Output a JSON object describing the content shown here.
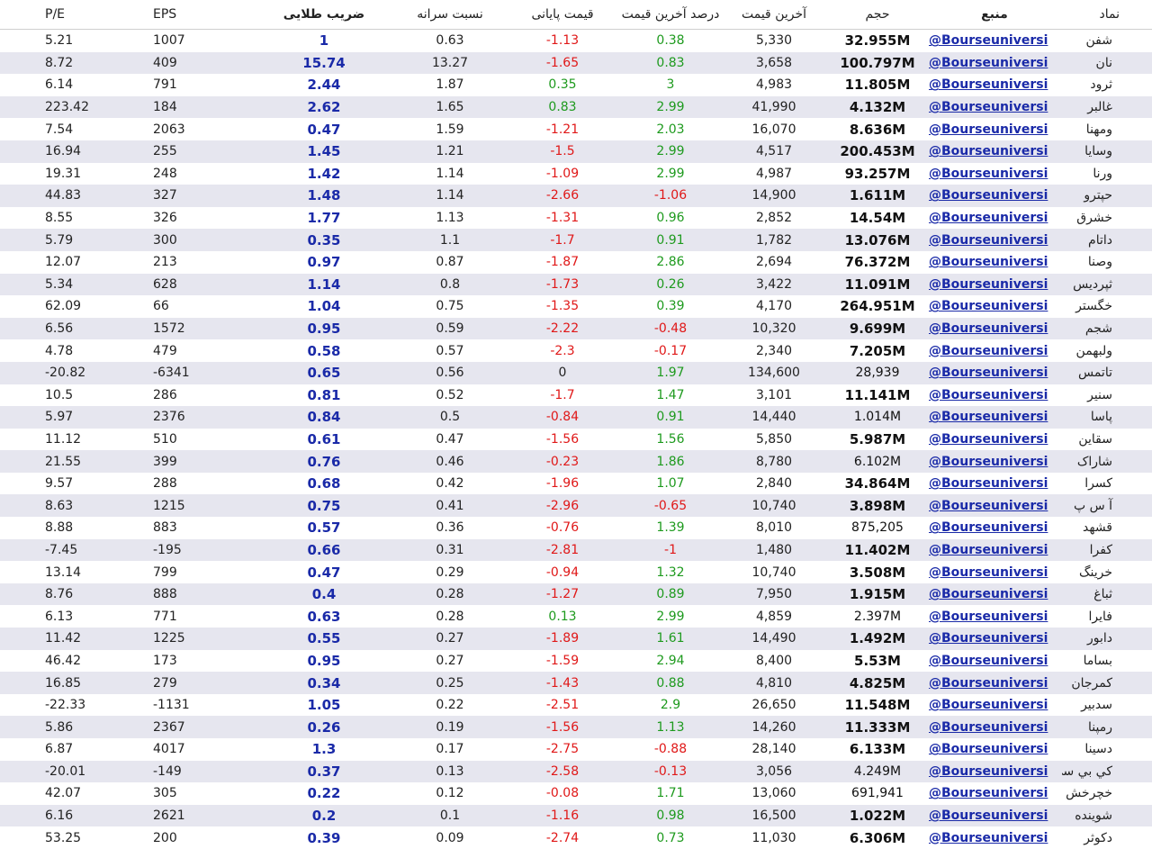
{
  "headers": {
    "pe": "P/E",
    "eps": "EPS",
    "golden": "ضریب طلایی",
    "per_capita": "نسبت سرانه",
    "close_price": "قیمت پایانی",
    "last_pct": "درصد آخرین قیمت",
    "last_price": "آخرین قیمت",
    "volume": "حجم",
    "source": "منبع",
    "symbol": "نماد"
  },
  "rows": [
    {
      "pe": "5.21",
      "eps": "1007",
      "golden": "1",
      "per": "0.63",
      "close": "-1.13",
      "lastpct": "0.38",
      "last": "5,330",
      "vol": "32.955M",
      "volBold": true,
      "src": "@Bourseuniversi",
      "sym": "شفن"
    },
    {
      "pe": "8.72",
      "eps": "409",
      "golden": "15.74",
      "per": "13.27",
      "close": "-1.65",
      "lastpct": "0.83",
      "last": "3,658",
      "vol": "100.797M",
      "volBold": true,
      "src": "@Bourseuniversi",
      "sym": "نان"
    },
    {
      "pe": "6.14",
      "eps": "791",
      "golden": "2.44",
      "per": "1.87",
      "close": "0.35",
      "lastpct": "3",
      "last": "4,983",
      "vol": "11.805M",
      "volBold": true,
      "src": "@Bourseuniversi",
      "sym": "ثرود"
    },
    {
      "pe": "223.42",
      "eps": "184",
      "golden": "2.62",
      "per": "1.65",
      "close": "0.83",
      "lastpct": "2.99",
      "last": "41,990",
      "vol": "4.132M",
      "volBold": true,
      "src": "@Bourseuniversi",
      "sym": "غالبر"
    },
    {
      "pe": "7.54",
      "eps": "2063",
      "golden": "0.47",
      "per": "1.59",
      "close": "-1.21",
      "lastpct": "2.03",
      "last": "16,070",
      "vol": "8.636M",
      "volBold": true,
      "src": "@Bourseuniversi",
      "sym": "ومهنا"
    },
    {
      "pe": "16.94",
      "eps": "255",
      "golden": "1.45",
      "per": "1.21",
      "close": "-1.5",
      "lastpct": "2.99",
      "last": "4,517",
      "vol": "200.453M",
      "volBold": true,
      "src": "@Bourseuniversi",
      "sym": "وسایا"
    },
    {
      "pe": "19.31",
      "eps": "248",
      "golden": "1.42",
      "per": "1.14",
      "close": "-1.09",
      "lastpct": "2.99",
      "last": "4,987",
      "vol": "93.257M",
      "volBold": true,
      "src": "@Bourseuniversi",
      "sym": "ورنا"
    },
    {
      "pe": "44.83",
      "eps": "327",
      "golden": "1.48",
      "per": "1.14",
      "close": "-2.66",
      "lastpct": "-1.06",
      "last": "14,900",
      "vol": "1.611M",
      "volBold": true,
      "src": "@Bourseuniversi",
      "sym": "حپترو"
    },
    {
      "pe": "8.55",
      "eps": "326",
      "golden": "1.77",
      "per": "1.13",
      "close": "-1.31",
      "lastpct": "0.96",
      "last": "2,852",
      "vol": "14.54M",
      "volBold": true,
      "src": "@Bourseuniversi",
      "sym": "خشرق"
    },
    {
      "pe": "5.79",
      "eps": "300",
      "golden": "0.35",
      "per": "1.1",
      "close": "-1.7",
      "lastpct": "0.91",
      "last": "1,782",
      "vol": "13.076M",
      "volBold": true,
      "src": "@Bourseuniversi",
      "sym": "داتام"
    },
    {
      "pe": "12.07",
      "eps": "213",
      "golden": "0.97",
      "per": "0.87",
      "close": "-1.87",
      "lastpct": "2.86",
      "last": "2,694",
      "vol": "76.372M",
      "volBold": true,
      "src": "@Bourseuniversi",
      "sym": "وصنا"
    },
    {
      "pe": "5.34",
      "eps": "628",
      "golden": "1.14",
      "per": "0.8",
      "close": "-1.73",
      "lastpct": "0.26",
      "last": "3,422",
      "vol": "11.091M",
      "volBold": true,
      "src": "@Bourseuniversi",
      "sym": "ثپردیس"
    },
    {
      "pe": "62.09",
      "eps": "66",
      "golden": "1.04",
      "per": "0.75",
      "close": "-1.35",
      "lastpct": "0.39",
      "last": "4,170",
      "vol": "264.951M",
      "volBold": true,
      "src": "@Bourseuniversi",
      "sym": "خگستر"
    },
    {
      "pe": "6.56",
      "eps": "1572",
      "golden": "0.95",
      "per": "0.59",
      "close": "-2.22",
      "lastpct": "-0.48",
      "last": "10,320",
      "vol": "9.699M",
      "volBold": true,
      "src": "@Bourseuniversi",
      "sym": "شجم"
    },
    {
      "pe": "4.78",
      "eps": "479",
      "golden": "0.58",
      "per": "0.57",
      "close": "-2.3",
      "lastpct": "-0.17",
      "last": "2,340",
      "vol": "7.205M",
      "volBold": true,
      "src": "@Bourseuniversi",
      "sym": "ولبهمن"
    },
    {
      "pe": "-20.82",
      "eps": "-6341",
      "golden": "0.65",
      "per": "0.56",
      "close": "0",
      "lastpct": "1.97",
      "last": "134,600",
      "vol": "28,939",
      "volBold": false,
      "src": "@Bourseuniversi",
      "sym": "تاتمس"
    },
    {
      "pe": "10.5",
      "eps": "286",
      "golden": "0.81",
      "per": "0.52",
      "close": "-1.7",
      "lastpct": "1.47",
      "last": "3,101",
      "vol": "11.141M",
      "volBold": true,
      "src": "@Bourseuniversi",
      "sym": "سنیر"
    },
    {
      "pe": "5.97",
      "eps": "2376",
      "golden": "0.84",
      "per": "0.5",
      "close": "-0.84",
      "lastpct": "0.91",
      "last": "14,440",
      "vol": "1.014M",
      "volBold": false,
      "src": "@Bourseuniversi",
      "sym": "پاسا"
    },
    {
      "pe": "11.12",
      "eps": "510",
      "golden": "0.61",
      "per": "0.47",
      "close": "-1.56",
      "lastpct": "1.56",
      "last": "5,850",
      "vol": "5.987M",
      "volBold": true,
      "src": "@Bourseuniversi",
      "sym": "سقاین"
    },
    {
      "pe": "21.55",
      "eps": "399",
      "golden": "0.76",
      "per": "0.46",
      "close": "-0.23",
      "lastpct": "1.86",
      "last": "8,780",
      "vol": "6.102M",
      "volBold": false,
      "src": "@Bourseuniversi",
      "sym": "شاراک"
    },
    {
      "pe": "9.57",
      "eps": "288",
      "golden": "0.68",
      "per": "0.42",
      "close": "-1.96",
      "lastpct": "1.07",
      "last": "2,840",
      "vol": "34.864M",
      "volBold": true,
      "src": "@Bourseuniversi",
      "sym": "کسرا"
    },
    {
      "pe": "8.63",
      "eps": "1215",
      "golden": "0.75",
      "per": "0.41",
      "close": "-2.96",
      "lastpct": "-0.65",
      "last": "10,740",
      "vol": "3.898M",
      "volBold": true,
      "src": "@Bourseuniversi",
      "sym": "آ س پ"
    },
    {
      "pe": "8.88",
      "eps": "883",
      "golden": "0.57",
      "per": "0.36",
      "close": "-0.76",
      "lastpct": "1.39",
      "last": "8,010",
      "vol": "875,205",
      "volBold": false,
      "src": "@Bourseuniversi",
      "sym": "قشهد"
    },
    {
      "pe": "-7.45",
      "eps": "-195",
      "golden": "0.66",
      "per": "0.31",
      "close": "-2.81",
      "lastpct": "-1",
      "last": "1,480",
      "vol": "11.402M",
      "volBold": true,
      "src": "@Bourseuniversi",
      "sym": "کفرا"
    },
    {
      "pe": "13.14",
      "eps": "799",
      "golden": "0.47",
      "per": "0.29",
      "close": "-0.94",
      "lastpct": "1.32",
      "last": "10,740",
      "vol": "3.508M",
      "volBold": true,
      "src": "@Bourseuniversi",
      "sym": "خرینگ"
    },
    {
      "pe": "8.76",
      "eps": "888",
      "golden": "0.4",
      "per": "0.28",
      "close": "-1.27",
      "lastpct": "0.89",
      "last": "7,950",
      "vol": "1.915M",
      "volBold": true,
      "src": "@Bourseuniversi",
      "sym": "ثباغ"
    },
    {
      "pe": "6.13",
      "eps": "771",
      "golden": "0.63",
      "per": "0.28",
      "close": "0.13",
      "lastpct": "2.99",
      "last": "4,859",
      "vol": "2.397M",
      "volBold": false,
      "src": "@Bourseuniversi",
      "sym": "فایرا"
    },
    {
      "pe": "11.42",
      "eps": "1225",
      "golden": "0.55",
      "per": "0.27",
      "close": "-1.89",
      "lastpct": "1.61",
      "last": "14,490",
      "vol": "1.492M",
      "volBold": true,
      "src": "@Bourseuniversi",
      "sym": "دابور"
    },
    {
      "pe": "46.42",
      "eps": "173",
      "golden": "0.95",
      "per": "0.27",
      "close": "-1.59",
      "lastpct": "2.94",
      "last": "8,400",
      "vol": "5.53M",
      "volBold": true,
      "src": "@Bourseuniversi",
      "sym": "بساما"
    },
    {
      "pe": "16.85",
      "eps": "279",
      "golden": "0.34",
      "per": "0.25",
      "close": "-1.43",
      "lastpct": "0.88",
      "last": "4,810",
      "vol": "4.825M",
      "volBold": true,
      "src": "@Bourseuniversi",
      "sym": "کمرجان"
    },
    {
      "pe": "-22.33",
      "eps": "-1131",
      "golden": "1.05",
      "per": "0.22",
      "close": "-2.51",
      "lastpct": "2.9",
      "last": "26,650",
      "vol": "11.548M",
      "volBold": true,
      "src": "@Bourseuniversi",
      "sym": "سدبیر"
    },
    {
      "pe": "5.86",
      "eps": "2367",
      "golden": "0.26",
      "per": "0.19",
      "close": "-1.56",
      "lastpct": "1.13",
      "last": "14,260",
      "vol": "11.333M",
      "volBold": true,
      "src": "@Bourseuniversi",
      "sym": "رمپنا"
    },
    {
      "pe": "6.87",
      "eps": "4017",
      "golden": "1.3",
      "per": "0.17",
      "close": "-2.75",
      "lastpct": "-0.88",
      "last": "28,140",
      "vol": "6.133M",
      "volBold": true,
      "src": "@Bourseuniversi",
      "sym": "دسینا"
    },
    {
      "pe": "-20.01",
      "eps": "-149",
      "golden": "0.37",
      "per": "0.13",
      "close": "-2.58",
      "lastpct": "-0.13",
      "last": "3,056",
      "vol": "4.249M",
      "volBold": false,
      "src": "@Bourseuniversi",
      "sym": "كي بي سي"
    },
    {
      "pe": "42.07",
      "eps": "305",
      "golden": "0.22",
      "per": "0.12",
      "close": "-0.08",
      "lastpct": "1.71",
      "last": "13,060",
      "vol": "691,941",
      "volBold": false,
      "src": "@Bourseuniversi",
      "sym": "خچرخش"
    },
    {
      "pe": "6.16",
      "eps": "2621",
      "golden": "0.2",
      "per": "0.1",
      "close": "-1.16",
      "lastpct": "0.98",
      "last": "16,500",
      "vol": "1.022M",
      "volBold": true,
      "src": "@Bourseuniversi",
      "sym": "شوینده"
    },
    {
      "pe": "53.25",
      "eps": "200",
      "golden": "0.39",
      "per": "0.09",
      "close": "-2.74",
      "lastpct": "0.73",
      "last": "11,030",
      "vol": "6.306M",
      "volBold": true,
      "src": "@Bourseuniversi",
      "sym": "دکوثر"
    }
  ],
  "colors": {
    "positive": "#1e9a1e",
    "negative": "#e01818",
    "golden": "#1a2aa8",
    "source_link": "#1a2aa8",
    "row_stripe": "#e6e6ef"
  }
}
